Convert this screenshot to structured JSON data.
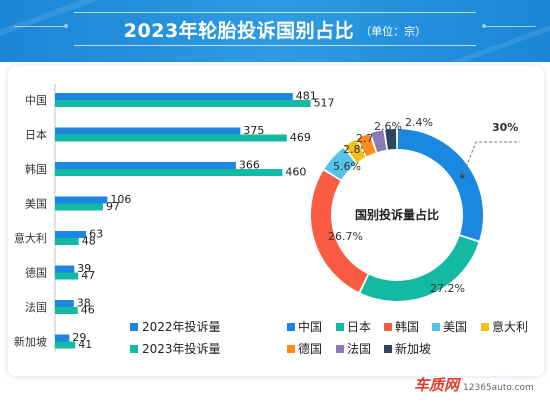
{
  "header": {
    "title": "2023年轮胎投诉国别占比",
    "unit": "（单位：宗）"
  },
  "chart_data": [
    {
      "type": "bar",
      "orientation": "horizontal",
      "categories": [
        "中国",
        "日本",
        "韩国",
        "美国",
        "意大利",
        "德国",
        "法国",
        "新加坡"
      ],
      "series": [
        {
          "name": "2022年投诉量",
          "values": [
            481,
            375,
            366,
            106,
            63,
            39,
            38,
            29
          ],
          "color": "#1a87e0"
        },
        {
          "name": "2023年投诉量",
          "values": [
            517,
            469,
            460,
            97,
            48,
            47,
            46,
            41
          ],
          "color": "#13b9a3"
        }
      ],
      "xlim": [
        0,
        530
      ],
      "grid": false,
      "legend": "bottom"
    },
    {
      "type": "pie",
      "variant": "donut",
      "center_label": "国别投诉量占比",
      "labels": [
        "中国",
        "日本",
        "韩国",
        "美国",
        "意大利",
        "德国",
        "法国",
        "新加坡"
      ],
      "percent_labels": [
        "30%",
        "27.2%",
        "26.7%",
        "5.6%",
        "2.8%",
        "2.7%",
        "2.6%",
        "2.4%"
      ],
      "values": [
        517,
        469,
        460,
        97,
        48,
        47,
        46,
        41
      ],
      "colors": [
        "#1a87e0",
        "#13b9a3",
        "#fb5b43",
        "#55c4e8",
        "#f1c21b",
        "#ff8c1a",
        "#8a7ab8",
        "#2e4660"
      ],
      "legend": "bottom"
    }
  ],
  "watermark": {
    "logo": "车质网",
    "url": "12365auto.com"
  }
}
